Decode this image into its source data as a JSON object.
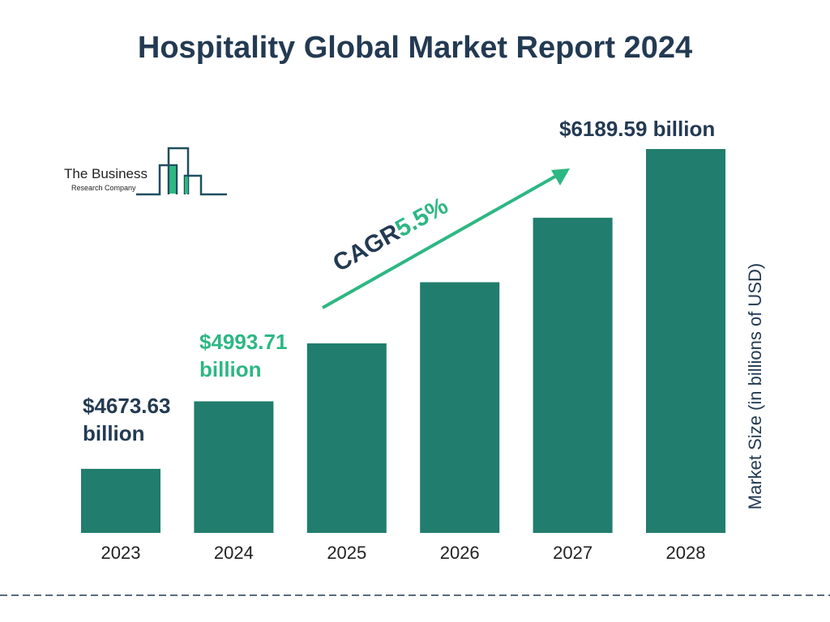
{
  "chart_data": {
    "type": "bar",
    "title": "Hospitality Global Market Report 2024",
    "ylabel": "Market Size (in billions of USD)",
    "xlabel": "",
    "categories": [
      "2023",
      "2024",
      "2025",
      "2026",
      "2027",
      "2028"
    ],
    "values": [
      4673.63,
      4993.71,
      5268.4,
      5558.2,
      5863.9,
      6189.59
    ],
    "ylim": [
      4370,
      6189.59
    ],
    "grid": false,
    "data_labels": {
      "2023": "$4673.63 billion",
      "2024": "$4993.71 billion",
      "2028": "$6189.59 billion"
    },
    "annotation": {
      "prefix": "CAGR",
      "value": "5.5%"
    },
    "colors": {
      "bar": "#217d6d",
      "text": "#233a52",
      "accent": "#2db783"
    }
  },
  "logo": {
    "line1": "The Business",
    "line2": "Research Company"
  }
}
